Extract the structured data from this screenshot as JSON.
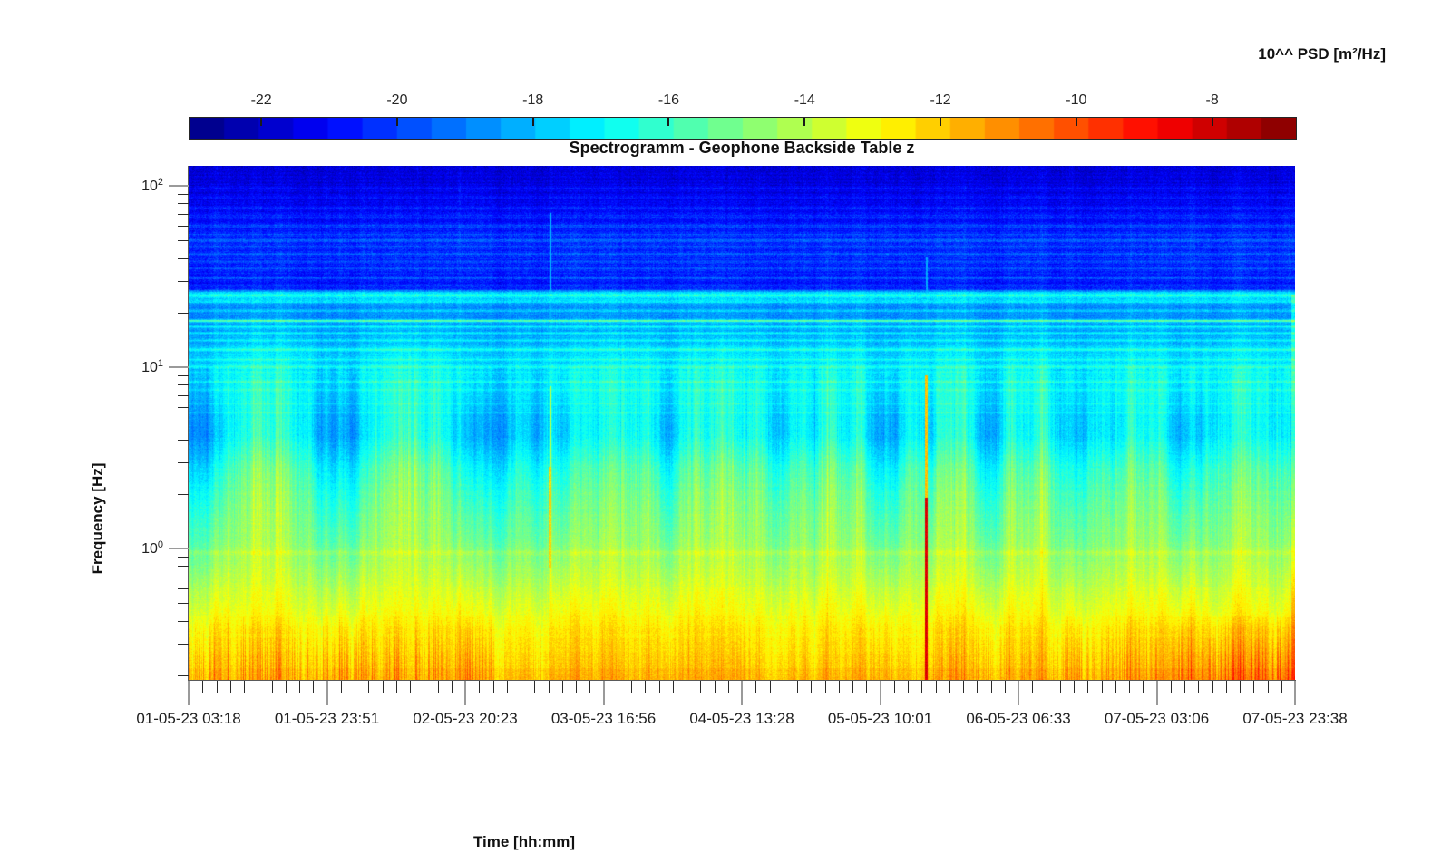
{
  "chart_data": {
    "type": "heatmap",
    "subtype": "spectrogram",
    "title": "Spectrogramm - Geophone Backside Table z",
    "xlabel": "Time [hh:mm]",
    "ylabel": "Frequency [Hz]",
    "colorbar_label": "10^^ PSD [m²/Hz]",
    "colormap": "jet",
    "colormap_levels": 32,
    "clim": [
      -23.07,
      -6.78
    ],
    "colorbar_ticks": [
      -22,
      -20,
      -18,
      -16,
      -14,
      -12,
      -10,
      -8
    ],
    "x_tick_labels": [
      "01-05-23 03:18",
      "01-05-23 23:51",
      "02-05-23 20:23",
      "03-05-23 16:56",
      "04-05-23 13:28",
      "05-05-23 10:01",
      "06-05-23 06:33",
      "07-05-23 03:06",
      "07-05-23 23:38"
    ],
    "x_minor_divisions": 10,
    "y_scale": "log",
    "y_ticks": [
      {
        "base": "10",
        "exp": "2",
        "hz": 100
      },
      {
        "base": "10",
        "exp": "1",
        "hz": 10
      },
      {
        "base": "10",
        "exp": "0",
        "hz": 1
      }
    ],
    "freq_range_hz": [
      0.188,
      128.8
    ],
    "log_freq_range": [
      -0.725,
      2.11
    ],
    "background_profile_logf_psd": [
      [
        2.11,
        -21.7
      ],
      [
        1.95,
        -21.3
      ],
      [
        1.78,
        -20.7
      ],
      [
        1.62,
        -20.4
      ],
      [
        1.5,
        -20.6
      ],
      [
        1.44,
        -20.8
      ],
      [
        1.4,
        -19.6
      ],
      [
        1.34,
        -18.9
      ],
      [
        1.18,
        -18.5
      ],
      [
        1.02,
        -17.6
      ],
      [
        0.88,
        -17.4
      ],
      [
        0.75,
        -17.7
      ],
      [
        0.62,
        -17.85
      ],
      [
        0.45,
        -16.9
      ],
      [
        0.25,
        -16.2
      ],
      [
        0.05,
        -15.5
      ],
      [
        -0.1,
        -14.7
      ],
      [
        -0.25,
        -13.8
      ],
      [
        -0.4,
        -13.0
      ],
      [
        -0.55,
        -12.5
      ],
      [
        -0.725,
        -12.1
      ]
    ],
    "spectral_lines_hz_amp_width": [
      [
        97,
        0.8,
        0.006
      ],
      [
        86,
        0.6,
        0.005
      ],
      [
        75,
        0.7,
        0.005
      ],
      [
        68,
        0.5,
        0.005
      ],
      [
        60,
        0.8,
        0.006
      ],
      [
        54,
        0.6,
        0.005
      ],
      [
        50,
        1.1,
        0.007
      ],
      [
        46,
        0.6,
        0.005
      ],
      [
        42,
        0.7,
        0.005
      ],
      [
        38,
        0.6,
        0.005
      ],
      [
        35,
        0.6,
        0.005
      ],
      [
        31,
        0.7,
        0.005
      ],
      [
        28,
        0.6,
        0.005
      ],
      [
        25,
        3.0,
        0.016
      ],
      [
        23,
        1.6,
        0.008
      ],
      [
        20.5,
        1.0,
        0.006
      ],
      [
        18,
        3.3,
        0.0045
      ],
      [
        16.7,
        1.4,
        0.005
      ],
      [
        15.4,
        1.2,
        0.005
      ],
      [
        14,
        1.0,
        0.005
      ],
      [
        12.5,
        1.3,
        0.006
      ],
      [
        11,
        0.9,
        0.005
      ],
      [
        10,
        0.9,
        0.005
      ],
      [
        9.4,
        0.7,
        0.004
      ],
      [
        8.3,
        0.9,
        0.005
      ],
      [
        7.5,
        0.6,
        0.004
      ],
      [
        6.3,
        0.6,
        0.004
      ],
      [
        5.6,
        0.5,
        0.004
      ],
      [
        0.95,
        0.5,
        0.012
      ]
    ],
    "activity_bumps_t_amp_width": [
      [
        0.045,
        1.5,
        0.01
      ],
      [
        0.065,
        2.0,
        0.009
      ],
      [
        0.085,
        1.7,
        0.01
      ],
      [
        0.105,
        1.3,
        0.008
      ],
      [
        0.175,
        1.6,
        0.012
      ],
      [
        0.2,
        2.2,
        0.01
      ],
      [
        0.225,
        1.8,
        0.009
      ],
      [
        0.3,
        1.1,
        0.007
      ],
      [
        0.325,
        1.0,
        0.006
      ],
      [
        0.36,
        1.4,
        0.01
      ],
      [
        0.39,
        1.7,
        0.012
      ],
      [
        0.415,
        1.4,
        0.008
      ],
      [
        0.455,
        1.6,
        0.01
      ],
      [
        0.485,
        2.0,
        0.011
      ],
      [
        0.515,
        1.7,
        0.01
      ],
      [
        0.55,
        1.5,
        0.01
      ],
      [
        0.58,
        1.9,
        0.011
      ],
      [
        0.605,
        1.4,
        0.008
      ],
      [
        0.655,
        1.5,
        0.009
      ],
      [
        0.685,
        1.7,
        0.01
      ],
      [
        0.705,
        1.2,
        0.007
      ],
      [
        0.745,
        1.5,
        0.01
      ],
      [
        0.775,
        1.8,
        0.011
      ],
      [
        0.82,
        1.4,
        0.01
      ],
      [
        0.85,
        1.7,
        0.011
      ],
      [
        0.875,
        1.3,
        0.008
      ],
      [
        0.93,
        1.4,
        0.01
      ],
      [
        0.96,
        1.6,
        0.011
      ],
      [
        0.985,
        1.3,
        0.008
      ]
    ],
    "events": [
      {
        "t": 0.327,
        "f1": 0.3,
        "f2": 0.8,
        "level": -12.9,
        "w": 1.6
      },
      {
        "t": 0.327,
        "f1": 0.8,
        "f2": 2.8,
        "level": -12.3,
        "w": 2.0
      },
      {
        "t": 0.327,
        "f1": 2.8,
        "f2": 7.8,
        "level": -14.2,
        "w": 1.6
      },
      {
        "t": 0.327,
        "f1": 7.8,
        "f2": 70.0,
        "level": -18.3,
        "w": 1.2
      },
      {
        "t": 0.667,
        "f1": 0.19,
        "f2": 1.9,
        "level": -8.3,
        "w": 2.5
      },
      {
        "t": 0.667,
        "f1": 1.9,
        "f2": 9.0,
        "level": -11.9,
        "w": 1.6
      },
      {
        "t": 0.667,
        "f1": 9.0,
        "f2": 40.0,
        "level": -18.4,
        "w": 1.0
      },
      {
        "t": 0.9985,
        "f1": 0.19,
        "f2": 25.0,
        "add": 1.6,
        "w": 3.0
      }
    ],
    "bottom_band": {
      "logf_start": -0.38,
      "left_w": 1.0,
      "left_end": 0.28,
      "mid_w": 0.4,
      "mid_end": 0.66,
      "right_w0": 0.55,
      "right_w1": 1.2,
      "right_lift_start": 0.84
    },
    "noise_seed": 42
  }
}
